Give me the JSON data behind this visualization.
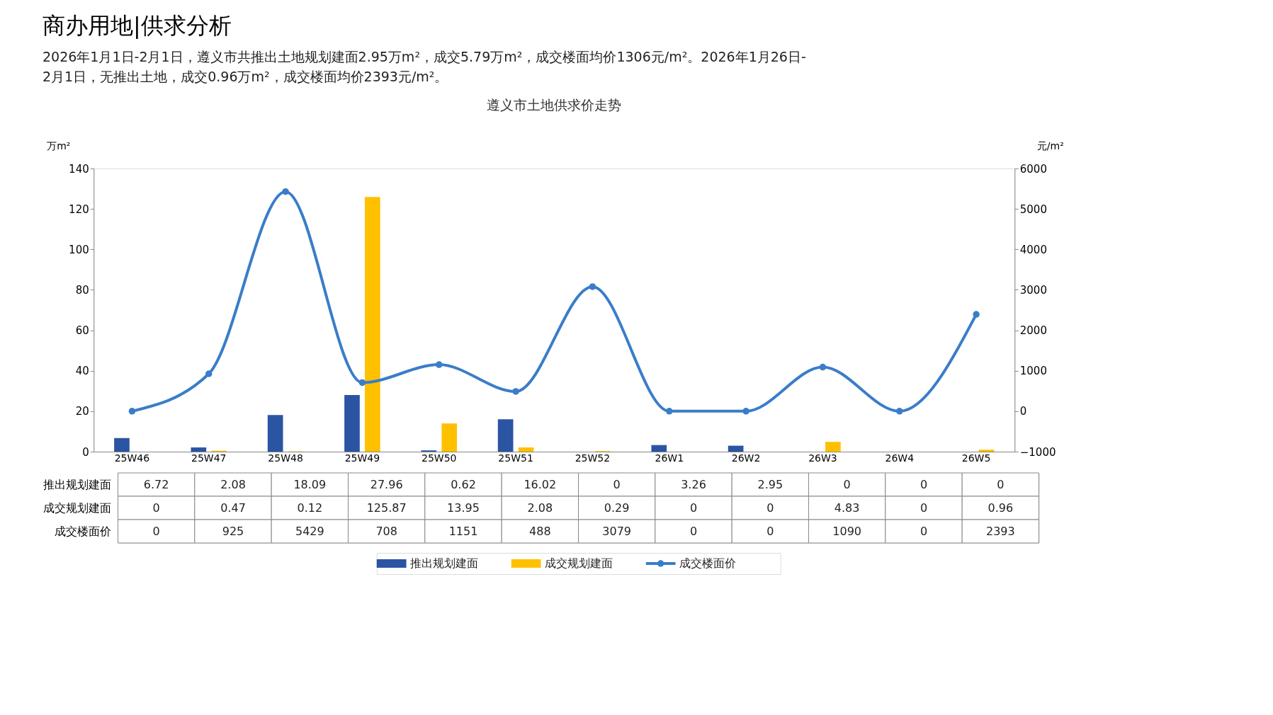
{
  "chart_data": {
    "type": "bar",
    "title": "商办用地|供求分析",
    "subtitle": "2026年1月1日-2月1日，遵义市共推出土地规划建面2.95万m²，成交5.79万m²，成交楼面均价1306元/m²。2026年1月26日-2月1日，无推出土地，成交0.96万m²，成交楼面均价2393元/m²。",
    "annotations": [
      "遵义市土地供求价走势"
    ],
    "ylabel": "万m²",
    "y2label": "元/m²",
    "categories": [
      "25W46",
      "25W47",
      "25W48",
      "25W49",
      "25W50",
      "25W51",
      "25W52",
      "26W1",
      "26W2",
      "26W3",
      "26W4",
      "26W5"
    ],
    "series": [
      {
        "name": "推出规划建面",
        "color": "#2b54a3",
        "values": [
          6.72,
          2.08,
          18.09,
          27.96,
          0.62,
          16.02,
          0,
          3.26,
          2.95,
          0,
          0,
          0
        ]
      },
      {
        "name": "成交规划建面",
        "color": "#ffc000",
        "values": [
          0,
          0.47,
          0.12,
          125.87,
          13.95,
          2.08,
          0.29,
          0,
          0,
          4.83,
          0,
          0.96
        ]
      },
      {
        "name": "成交楼面价",
        "color": "#3a7dc9",
        "type": "line",
        "axis": "y2",
        "marker": "circle",
        "values": [
          0,
          925,
          5429,
          708,
          1151,
          488,
          3079,
          0,
          0,
          1090,
          0,
          2393
        ]
      }
    ],
    "ylim": [
      0,
      140
    ],
    "yticks": [
      0,
      20,
      40,
      60,
      80,
      100,
      120,
      140
    ],
    "y2lim": [
      -1000,
      6000
    ],
    "y2ticks": [
      -1000,
      0,
      1000,
      2000,
      3000,
      4000,
      5000,
      6000
    ],
    "data_labels": true,
    "legend": "bottom",
    "grid": false
  }
}
